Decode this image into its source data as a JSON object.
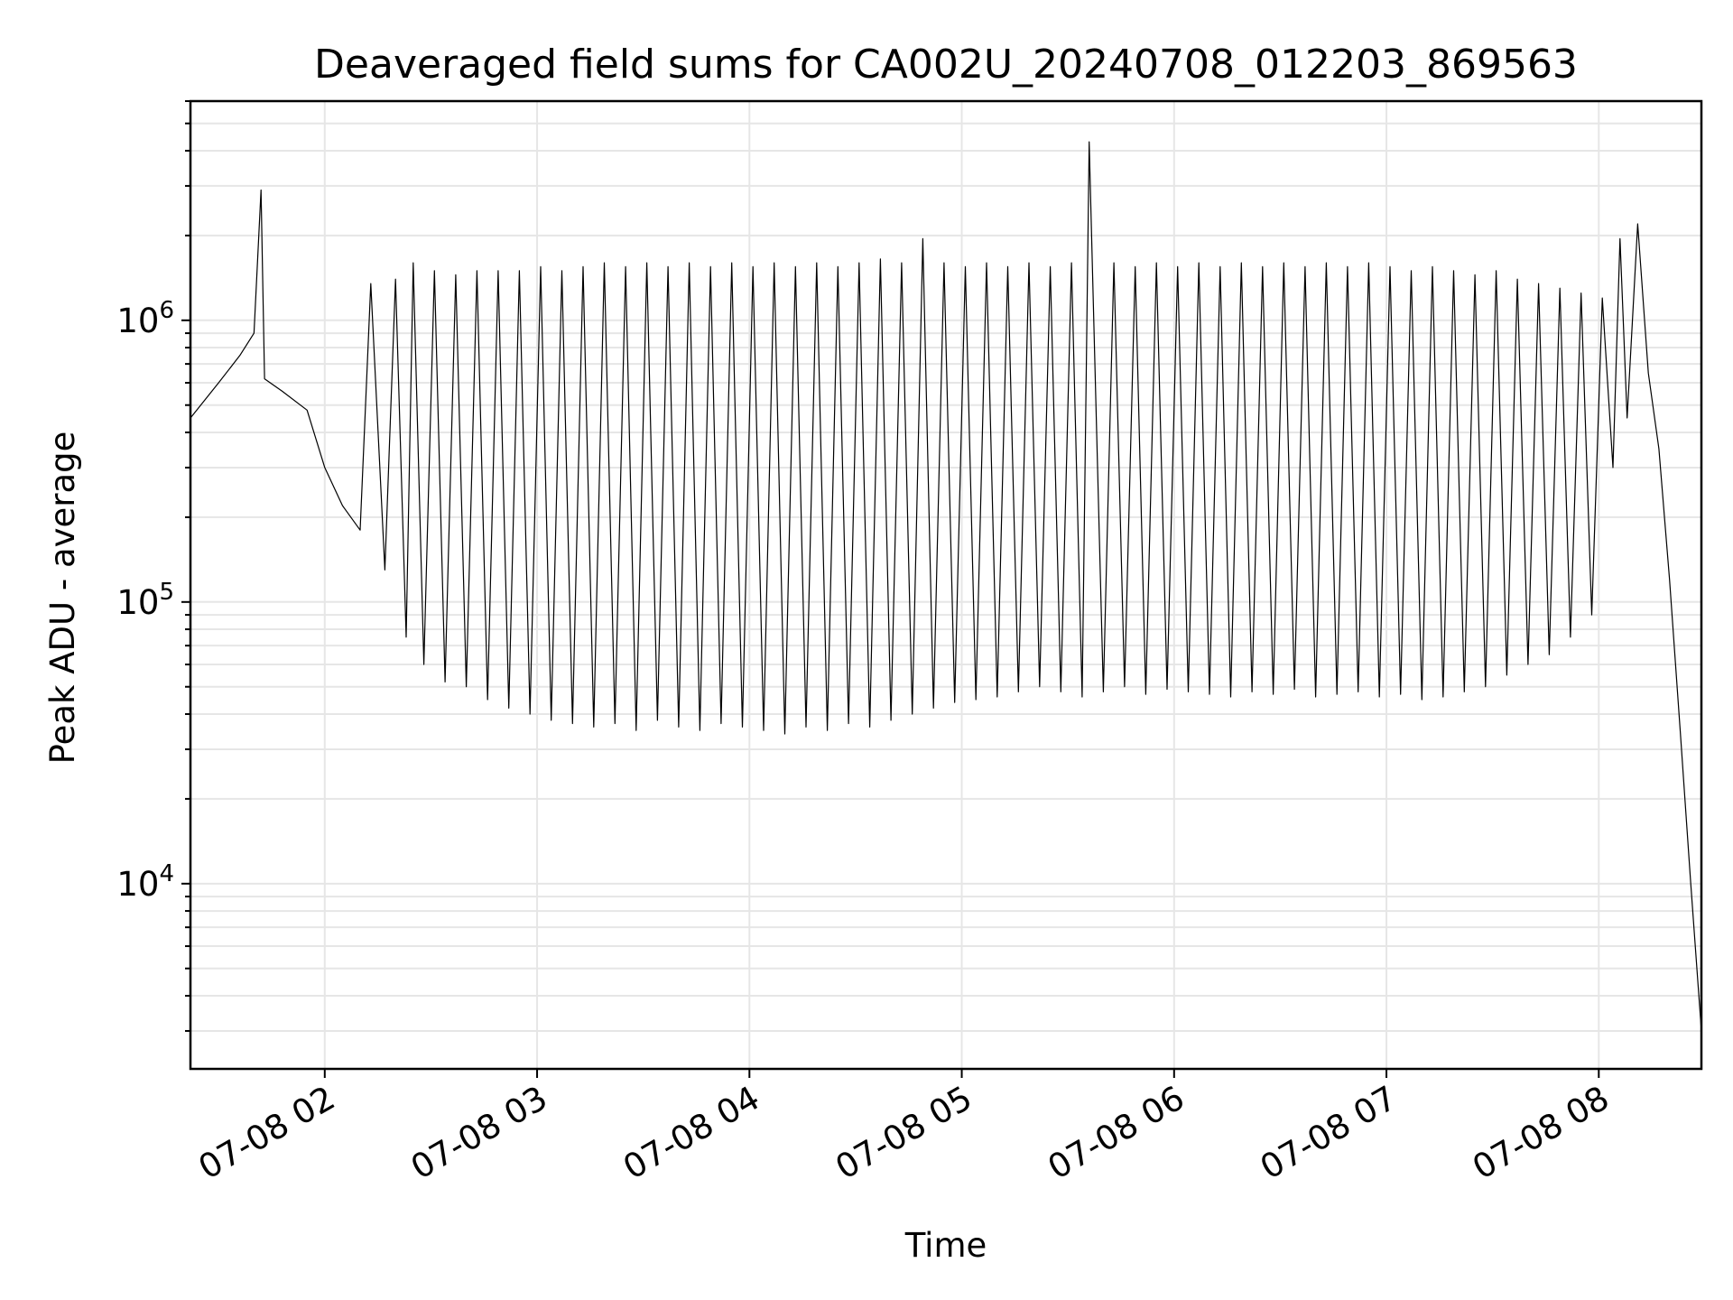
{
  "chart_data": {
    "type": "line",
    "title": "Deaveraged field sums for CA002U_20240708_012203_869563",
    "xlabel": "Time",
    "ylabel": "Peak ADU - average",
    "yscale": "log",
    "grid": true,
    "series_color": "#000000",
    "xlim": [
      "2024-07-08 01:22:03",
      "2024-07-08 08:29:00"
    ],
    "ylim": [
      2200,
      6000000
    ],
    "xticks": [
      {
        "value": "2024-07-08 02:00",
        "label": "07-08 02"
      },
      {
        "value": "2024-07-08 03:00",
        "label": "07-08 03"
      },
      {
        "value": "2024-07-08 04:00",
        "label": "07-08 04"
      },
      {
        "value": "2024-07-08 05:00",
        "label": "07-08 05"
      },
      {
        "value": "2024-07-08 06:00",
        "label": "07-08 06"
      },
      {
        "value": "2024-07-08 07:00",
        "label": "07-08 07"
      },
      {
        "value": "2024-07-08 08:00",
        "label": "07-08 08"
      }
    ],
    "yticks": [
      {
        "value": 10000,
        "base": "10",
        "exp": "4"
      },
      {
        "value": 100000,
        "base": "10",
        "exp": "5"
      },
      {
        "value": 1000000,
        "base": "10",
        "exp": "6"
      }
    ],
    "x": [
      "2024-07-08 01:22",
      "2024-07-08 01:30",
      "2024-07-08 01:36",
      "2024-07-08 01:40",
      "2024-07-08 01:42",
      "2024-07-08 01:43",
      "2024-07-08 01:48",
      "2024-07-08 01:55",
      "2024-07-08 02:00",
      "2024-07-08 02:05",
      "2024-07-08 02:10",
      "2024-07-08 02:13",
      "2024-07-08 02:17",
      "2024-07-08 02:20",
      "2024-07-08 02:23",
      "2024-07-08 02:25",
      "2024-07-08 02:28",
      "2024-07-08 02:31",
      "2024-07-08 02:34",
      "2024-07-08 02:37",
      "2024-07-08 02:40",
      "2024-07-08 02:43",
      "2024-07-08 02:46",
      "2024-07-08 02:49",
      "2024-07-08 02:52",
      "2024-07-08 02:55",
      "2024-07-08 02:58",
      "2024-07-08 03:01",
      "2024-07-08 03:04",
      "2024-07-08 03:07",
      "2024-07-08 03:10",
      "2024-07-08 03:13",
      "2024-07-08 03:16",
      "2024-07-08 03:19",
      "2024-07-08 03:22",
      "2024-07-08 03:25",
      "2024-07-08 03:28",
      "2024-07-08 03:31",
      "2024-07-08 03:34",
      "2024-07-08 03:37",
      "2024-07-08 03:40",
      "2024-07-08 03:43",
      "2024-07-08 03:46",
      "2024-07-08 03:49",
      "2024-07-08 03:52",
      "2024-07-08 03:55",
      "2024-07-08 03:58",
      "2024-07-08 04:01",
      "2024-07-08 04:04",
      "2024-07-08 04:07",
      "2024-07-08 04:10",
      "2024-07-08 04:13",
      "2024-07-08 04:16",
      "2024-07-08 04:19",
      "2024-07-08 04:22",
      "2024-07-08 04:25",
      "2024-07-08 04:28",
      "2024-07-08 04:31",
      "2024-07-08 04:34",
      "2024-07-08 04:37",
      "2024-07-08 04:40",
      "2024-07-08 04:43",
      "2024-07-08 04:46",
      "2024-07-08 04:49",
      "2024-07-08 04:52",
      "2024-07-08 04:55",
      "2024-07-08 04:58",
      "2024-07-08 05:01",
      "2024-07-08 05:04",
      "2024-07-08 05:07",
      "2024-07-08 05:10",
      "2024-07-08 05:13",
      "2024-07-08 05:16",
      "2024-07-08 05:19",
      "2024-07-08 05:22",
      "2024-07-08 05:25",
      "2024-07-08 05:28",
      "2024-07-08 05:31",
      "2024-07-08 05:34",
      "2024-07-08 05:36",
      "2024-07-08 05:40",
      "2024-07-08 05:43",
      "2024-07-08 05:46",
      "2024-07-08 05:49",
      "2024-07-08 05:52",
      "2024-07-08 05:55",
      "2024-07-08 05:58",
      "2024-07-08 06:01",
      "2024-07-08 06:04",
      "2024-07-08 06:07",
      "2024-07-08 06:10",
      "2024-07-08 06:13",
      "2024-07-08 06:16",
      "2024-07-08 06:19",
      "2024-07-08 06:22",
      "2024-07-08 06:25",
      "2024-07-08 06:28",
      "2024-07-08 06:31",
      "2024-07-08 06:34",
      "2024-07-08 06:37",
      "2024-07-08 06:40",
      "2024-07-08 06:43",
      "2024-07-08 06:46",
      "2024-07-08 06:49",
      "2024-07-08 06:52",
      "2024-07-08 06:55",
      "2024-07-08 06:58",
      "2024-07-08 07:01",
      "2024-07-08 07:04",
      "2024-07-08 07:07",
      "2024-07-08 07:10",
      "2024-07-08 07:13",
      "2024-07-08 07:16",
      "2024-07-08 07:19",
      "2024-07-08 07:22",
      "2024-07-08 07:25",
      "2024-07-08 07:28",
      "2024-07-08 07:31",
      "2024-07-08 07:34",
      "2024-07-08 07:37",
      "2024-07-08 07:40",
      "2024-07-08 07:43",
      "2024-07-08 07:46",
      "2024-07-08 07:49",
      "2024-07-08 07:52",
      "2024-07-08 07:55",
      "2024-07-08 07:58",
      "2024-07-08 08:01",
      "2024-07-08 08:04",
      "2024-07-08 08:06",
      "2024-07-08 08:08",
      "2024-07-08 08:11",
      "2024-07-08 08:14",
      "2024-07-08 08:17",
      "2024-07-08 08:20",
      "2024-07-08 08:23",
      "2024-07-08 08:26",
      "2024-07-08 08:29"
    ],
    "series": [
      {
        "values": [
          450000,
          600000,
          750000,
          900000,
          2900000,
          620000,
          560000,
          480000,
          300000,
          220000,
          180000,
          1350000,
          130000,
          1400000,
          75000,
          1600000,
          60000,
          1500000,
          52000,
          1450000,
          50000,
          1500000,
          45000,
          1500000,
          42000,
          1500000,
          40000,
          1550000,
          38000,
          1500000,
          37000,
          1550000,
          36000,
          1600000,
          37000,
          1550000,
          35000,
          1600000,
          38000,
          1550000,
          36000,
          1600000,
          35000,
          1550000,
          37000,
          1600000,
          36000,
          1550000,
          35000,
          1600000,
          34000,
          1550000,
          36000,
          1600000,
          35000,
          1550000,
          37000,
          1600000,
          36000,
          1650000,
          38000,
          1600000,
          40000,
          1950000,
          42000,
          1600000,
          44000,
          1550000,
          45000,
          1600000,
          46000,
          1550000,
          48000,
          1600000,
          50000,
          1550000,
          48000,
          1600000,
          46000,
          4300000,
          48000,
          1600000,
          50000,
          1550000,
          47000,
          1600000,
          49000,
          1550000,
          48000,
          1600000,
          47000,
          1550000,
          46000,
          1600000,
          48000,
          1550000,
          47000,
          1600000,
          49000,
          1550000,
          46000,
          1600000,
          47000,
          1550000,
          48000,
          1600000,
          46000,
          1550000,
          47000,
          1500000,
          45000,
          1550000,
          46000,
          1500000,
          48000,
          1450000,
          50000,
          1500000,
          55000,
          1400000,
          60000,
          1350000,
          65000,
          1300000,
          75000,
          1250000,
          90000,
          1200000,
          300000,
          1950000,
          450000,
          2200000,
          650000,
          350000,
          120000,
          35000,
          10000,
          3000
        ]
      }
    ]
  }
}
